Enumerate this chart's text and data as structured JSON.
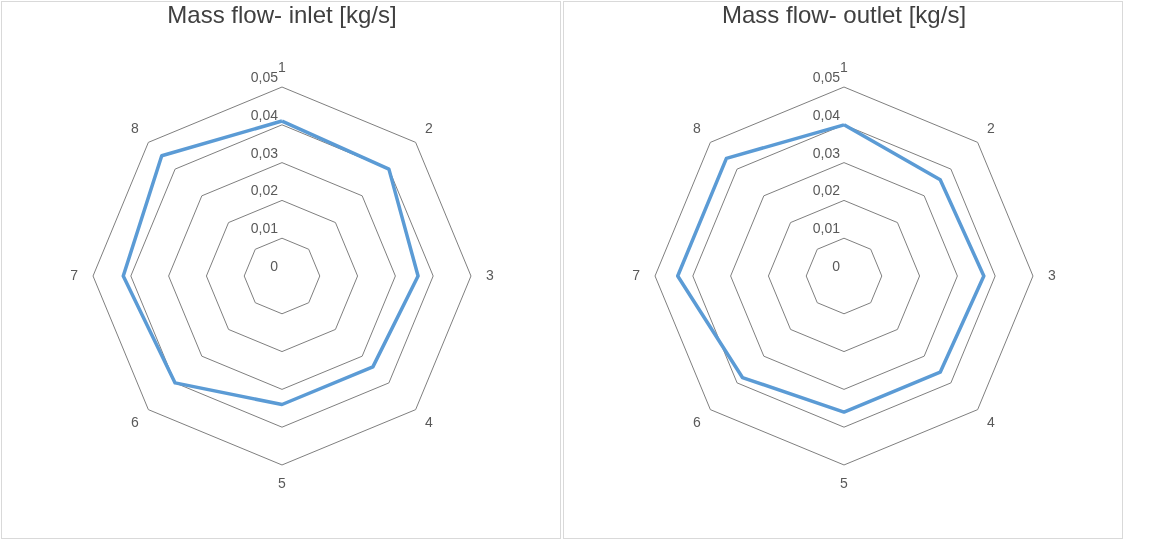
{
  "chart_data": [
    {
      "type": "radar",
      "title": "Mass flow- inlet [kg/s]",
      "categories": [
        "1",
        "2",
        "3",
        "4",
        "5",
        "6",
        "7",
        "8"
      ],
      "series": [
        {
          "color": "#5b9bd5",
          "values": [
            0.041,
            0.04,
            0.036,
            0.034,
            0.034,
            0.04,
            0.042,
            0.045
          ]
        }
      ],
      "ylim": [
        0,
        0.05
      ],
      "yticks": [
        0,
        {
          "value": 0.01,
          "label": "0,01"
        },
        {
          "value": 0.02,
          "label": "0,02"
        },
        {
          "value": 0.03,
          "label": "0,03"
        },
        {
          "value": 0.04,
          "label": "0,04"
        },
        {
          "value": 0.05,
          "label": "0,05"
        }
      ],
      "grid": true
    },
    {
      "type": "radar",
      "title": "Mass flow- outlet [kg/s]",
      "categories": [
        "1",
        "2",
        "3",
        "4",
        "5",
        "6",
        "7",
        "8"
      ],
      "series": [
        {
          "color": "#5b9bd5",
          "values": [
            0.04,
            0.036,
            0.037,
            0.036,
            0.036,
            0.038,
            0.044,
            0.044
          ]
        }
      ],
      "ylim": [
        0,
        0.05
      ],
      "yticks": [
        0,
        {
          "value": 0.01,
          "label": "0,01"
        },
        {
          "value": 0.02,
          "label": "0,02"
        },
        {
          "value": 0.03,
          "label": "0,03"
        },
        {
          "value": 0.04,
          "label": "0,04"
        },
        {
          "value": 0.05,
          "label": "0,05"
        }
      ],
      "grid": true
    }
  ]
}
